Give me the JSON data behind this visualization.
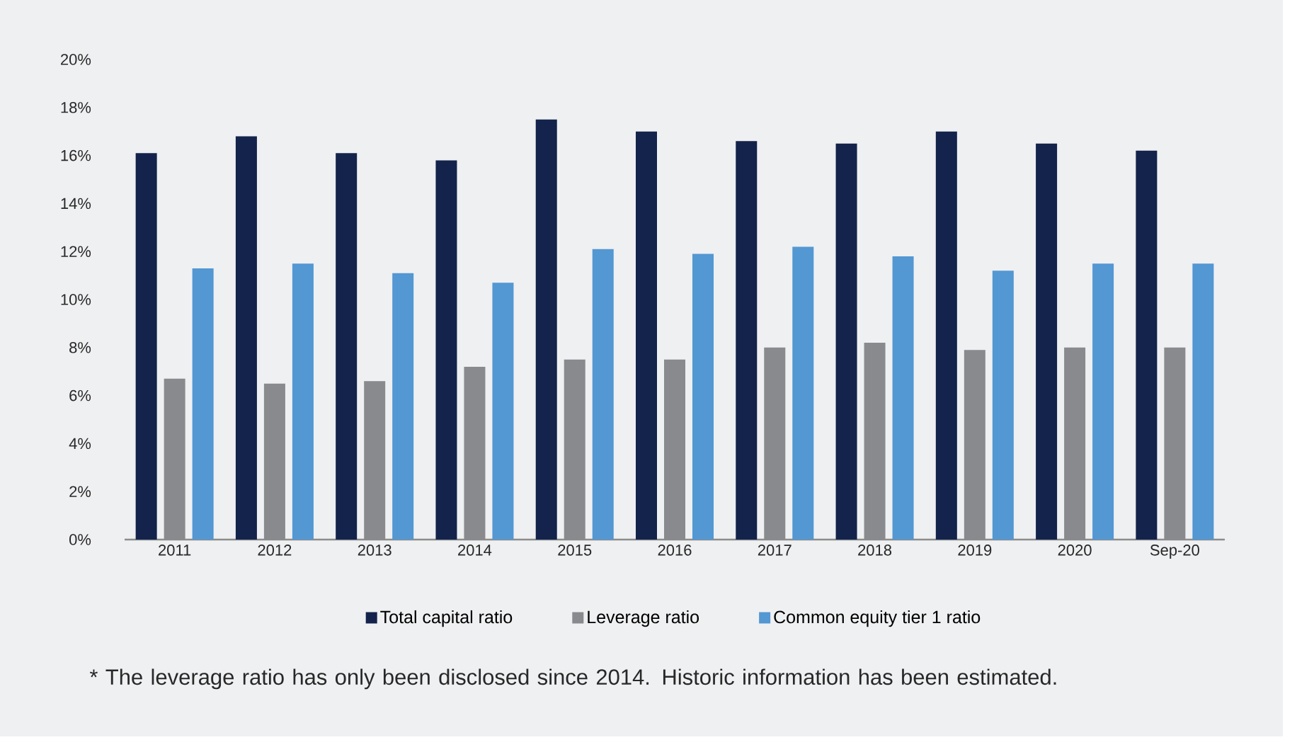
{
  "chart_data": {
    "type": "bar",
    "categories": [
      "2011",
      "2012",
      "2013",
      "2014",
      "2015",
      "2016",
      "2017",
      "2018",
      "2019",
      "2020",
      "Sep-20"
    ],
    "series": [
      {
        "name": "Total capital ratio",
        "color": "#13234b",
        "values": [
          16.1,
          16.8,
          16.1,
          15.8,
          17.5,
          17.0,
          16.6,
          16.5,
          17.0,
          16.5,
          16.2
        ]
      },
      {
        "name": "Leverage ratio",
        "color": "#898a8e",
        "values": [
          6.7,
          6.5,
          6.6,
          7.2,
          7.5,
          7.5,
          8.0,
          8.2,
          7.9,
          8.0,
          8.0
        ]
      },
      {
        "name": "Common equity tier 1 ratio",
        "color": "#5397d3",
        "values": [
          11.3,
          11.5,
          11.1,
          10.7,
          12.1,
          11.9,
          12.2,
          11.8,
          11.2,
          11.5,
          11.5
        ]
      }
    ],
    "ylim": [
      0,
      20
    ],
    "yticks": [
      {
        "value": 0,
        "label": "0%"
      },
      {
        "value": 2,
        "label": "2%"
      },
      {
        "value": 4,
        "label": "4%"
      },
      {
        "value": 6,
        "label": "6%"
      },
      {
        "value": 8,
        "label": "8%"
      },
      {
        "value": 10,
        "label": "10%"
      },
      {
        "value": 12,
        "label": "12%"
      },
      {
        "value": 14,
        "label": "14%"
      },
      {
        "value": 16,
        "label": "16%"
      },
      {
        "value": 18,
        "label": "18%"
      },
      {
        "value": 20,
        "label": "20%"
      }
    ],
    "legend": "bottom",
    "annotations": [
      "* The leverage ratio has only been disclosed since 2014. Historic information has been estimated."
    ]
  }
}
